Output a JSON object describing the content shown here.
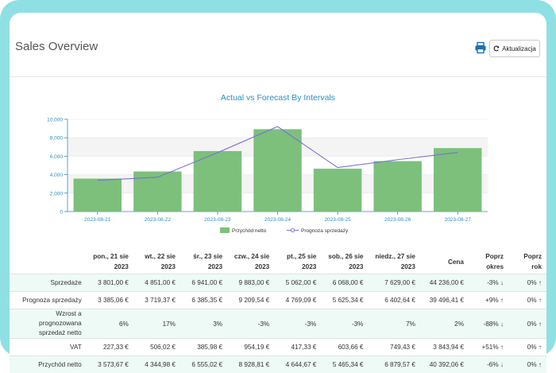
{
  "header": {
    "title": "Sales Overview",
    "refresh_label": "Aktualizacja",
    "print_icon": "print-icon",
    "refresh_icon": "refresh-icon"
  },
  "colors": {
    "bar": "#7cc07c",
    "line": "#7b6fd8",
    "title": "#2a8fc7",
    "axis": "#2a8fc7"
  },
  "chart_data": {
    "type": "bar",
    "title": "Actual vs Forecast By Intervals",
    "categories": [
      "2023-08-21",
      "2023-08-22",
      "2023-08-23",
      "2023-08-24",
      "2023-08-25",
      "2023-08-26",
      "2023-08-27"
    ],
    "series": [
      {
        "name": "Przychód netto",
        "type": "bar",
        "values": [
          3573.67,
          4344.98,
          6555.02,
          8928.81,
          4644.67,
          5465.34,
          6879.57
        ]
      },
      {
        "name": "Prognoza sprzedaży",
        "type": "line",
        "values": [
          3385.06,
          3719.37,
          6385.35,
          9209.54,
          4769.09,
          5625.34,
          6402.64
        ]
      }
    ],
    "ylim": [
      0,
      10000
    ],
    "yticks": [
      "0",
      "2,000",
      "4,000",
      "6,000",
      "8,000",
      "10,000"
    ],
    "legend": "bottom"
  },
  "table": {
    "columns": [
      "pon., 21 sie 2023",
      "wt., 22 sie 2023",
      "śr., 23 sie 2023",
      "czw., 24 sie 2023",
      "pt., 25 sie 2023",
      "sob., 26 sie 2023",
      "niedz., 27 sie 2023",
      "Cena",
      "Poprz okres",
      "Poprz rok"
    ],
    "rows": [
      {
        "label": "Sprzedaże",
        "cells": [
          "3 801,00 €",
          "4 851,00 €",
          "6 941,00 €",
          "9 883,00 €",
          "5 062,00 €",
          "6 068,00 €",
          "7 629,00 €",
          "44 236,00 €",
          "-3% ↓",
          "0% ↑"
        ]
      },
      {
        "label": "Prognoza sprzedaży",
        "cells": [
          "3 385,06 €",
          "3 719,37 €",
          "6 385,35 €",
          "9 209,54 €",
          "4 769,09 €",
          "5 625,34 €",
          "6 402,64 €",
          "39 496,41 €",
          "+9% ↑",
          "0% ↑"
        ]
      },
      {
        "label": "Wzrost a prognozowana sprzedaż netto",
        "cells": [
          "6%",
          "17%",
          "3%",
          "-3%",
          "-3%",
          "-3%",
          "7%",
          "2%",
          "-88% ↓",
          "0% ↑"
        ]
      },
      {
        "label": "VAT",
        "cells": [
          "227,33 €",
          "506,02 €",
          "385,98 €",
          "954,19 €",
          "417,33 €",
          "603,66 €",
          "749,43 €",
          "3 843,94 €",
          "+51% ↑",
          "0% ↑"
        ]
      },
      {
        "label": "Przychód netto",
        "cells": [
          "3 573,67 €",
          "4 344,98 €",
          "6 555,02 €",
          "8 928,81 €",
          "4 644,67 €",
          "5 465,34 €",
          "6 879,57 €",
          "40 392,06 €",
          "-6% ↓",
          "0% ↑"
        ]
      }
    ]
  }
}
